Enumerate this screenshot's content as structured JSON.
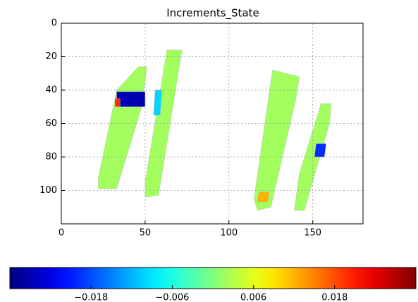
{
  "chart_data": {
    "type": "heatmap",
    "title": "Increments_State",
    "colormap": "jet",
    "grid": true,
    "xlim": [
      0,
      180
    ],
    "xticks": [
      0,
      50,
      100,
      150
    ],
    "ylim": [
      120,
      0
    ],
    "yticks": [
      0,
      20,
      40,
      60,
      80,
      100
    ],
    "clim": [
      -0.03,
      0.03
    ],
    "cticks": [
      {
        "value": -0.018,
        "label": "−0.018"
      },
      {
        "value": -0.006,
        "label": "−0.006"
      },
      {
        "value": 0.006,
        "label": "0.006"
      },
      {
        "value": 0.018,
        "label": "0.018"
      }
    ],
    "patches": [
      {
        "x": [
          33,
          46,
          51,
          48,
          33,
          22,
          22
        ],
        "y": [
          40,
          26,
          26,
          50,
          99,
          99,
          93
        ],
        "value": 0.002
      },
      {
        "x": [
          63,
          72,
          58,
          50,
          50
        ],
        "y": [
          16,
          16,
          103,
          104,
          95
        ],
        "value": 0.002
      },
      {
        "x": [
          126,
          142,
          140,
          125,
          117,
          115
        ],
        "y": [
          28,
          32,
          45,
          110,
          112,
          105
        ],
        "value": 0.002
      },
      {
        "x": [
          155,
          161,
          160,
          145,
          139,
          142
        ],
        "y": [
          48,
          48,
          60,
          112,
          112,
          90
        ],
        "value": 0.002
      },
      {
        "x": [
          33,
          50,
          50,
          33
        ],
        "y": [
          41,
          41,
          50,
          50
        ],
        "value": -0.027
      },
      {
        "x": [
          32,
          35,
          35,
          32
        ],
        "y": [
          45,
          45,
          50,
          50
        ],
        "value": 0.02
      },
      {
        "x": [
          56,
          60,
          59,
          55
        ],
        "y": [
          40,
          40,
          55,
          55
        ],
        "value": -0.01
      },
      {
        "x": [
          152,
          158,
          157,
          151
        ],
        "y": [
          72,
          72,
          80,
          80
        ],
        "value": -0.02
      },
      {
        "x": [
          118,
          124,
          123,
          117
        ],
        "y": [
          101,
          101,
          107,
          107
        ],
        "value": 0.012
      }
    ]
  }
}
